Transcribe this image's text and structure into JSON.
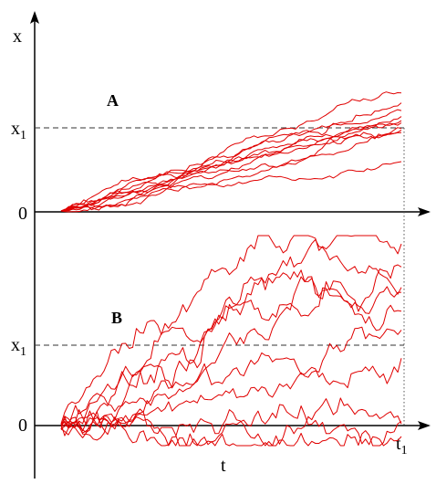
{
  "axes": {
    "x_axis_label": "x",
    "t_axis_label": "t",
    "t1_label": "t",
    "t1_subscript": "1",
    "zero_label": "0",
    "x1_label": "x",
    "x1_subscript": "1"
  },
  "panels": [
    {
      "id": "A",
      "label": "A",
      "path_count": 10,
      "description_kind": "low-variance drift"
    },
    {
      "id": "B",
      "label": "B",
      "path_count": 10,
      "description_kind": "high-variance diffusion"
    }
  ],
  "colors": {
    "paths": "#e00000",
    "axes": "#000000",
    "threshold": "#333333"
  }
}
